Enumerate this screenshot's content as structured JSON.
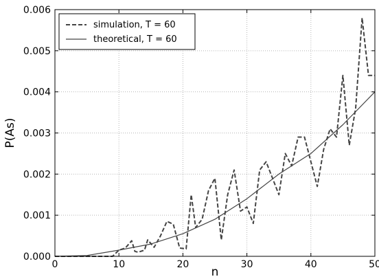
{
  "chart_data": {
    "type": "line",
    "title": "",
    "xlabel": "n",
    "ylabel": "P(As)",
    "xlim": [
      0,
      50
    ],
    "ylim": [
      0,
      0.006
    ],
    "xticks": [
      "0",
      "10",
      "20",
      "30",
      "40",
      "50"
    ],
    "xtick_values": [
      0,
      10,
      20,
      30,
      40,
      50
    ],
    "yticks": [
      "0.000",
      "0.001",
      "0.002",
      "0.003",
      "0.004",
      "0.005",
      "0.006"
    ],
    "ytick_values": [
      0,
      0.001,
      0.002,
      0.003,
      0.004,
      0.005,
      0.006
    ],
    "grid": true,
    "legend_position": "top-left",
    "series": [
      {
        "name": "simulation, T = 60",
        "style": "dashed",
        "color": "#444444",
        "points": [
          [
            0,
            0
          ],
          [
            5,
            0
          ],
          [
            9,
            0
          ],
          [
            10,
            0.00015
          ],
          [
            11,
            0.0002
          ],
          [
            12,
            0.00038
          ],
          [
            12.5,
            0.00012
          ],
          [
            13,
            0.0001
          ],
          [
            14,
            0.00015
          ],
          [
            14.5,
            0.0004
          ],
          [
            15.5,
            0.00022
          ],
          [
            16.5,
            0.0005
          ],
          [
            17.5,
            0.00085
          ],
          [
            18.5,
            0.00078
          ],
          [
            19.5,
            0.0002
          ],
          [
            20.5,
            0.00018
          ],
          [
            21.3,
            0.0015
          ],
          [
            22,
            0.0007
          ],
          [
            23,
            0.0009
          ],
          [
            24,
            0.0016
          ],
          [
            25,
            0.0019
          ],
          [
            26,
            0.0004
          ],
          [
            27,
            0.0015
          ],
          [
            28,
            0.0021
          ],
          [
            29,
            0.0011
          ],
          [
            30,
            0.0012
          ],
          [
            31,
            0.0008
          ],
          [
            32,
            0.0021
          ],
          [
            33,
            0.0023
          ],
          [
            34,
            0.0019
          ],
          [
            35,
            0.0015
          ],
          [
            36,
            0.0025
          ],
          [
            37,
            0.0022
          ],
          [
            38,
            0.0029
          ],
          [
            39,
            0.0029
          ],
          [
            40,
            0.0023
          ],
          [
            41,
            0.0017
          ],
          [
            42,
            0.0026
          ],
          [
            43,
            0.0031
          ],
          [
            44,
            0.0029
          ],
          [
            45,
            0.0044
          ],
          [
            46,
            0.0027
          ],
          [
            47,
            0.0036
          ],
          [
            48,
            0.0058
          ],
          [
            49,
            0.0044
          ],
          [
            50,
            0.0044
          ]
        ]
      },
      {
        "name": "theoretical, T = 60",
        "style": "solid",
        "color": "#444444",
        "points": [
          [
            0,
            0
          ],
          [
            5,
            2e-05
          ],
          [
            10,
            0.00015
          ],
          [
            15,
            0.0003
          ],
          [
            20,
            0.00055
          ],
          [
            25,
            0.0009
          ],
          [
            30,
            0.0014
          ],
          [
            35,
            0.002
          ],
          [
            40,
            0.0025
          ],
          [
            45,
            0.0032
          ],
          [
            50,
            0.004
          ]
        ]
      }
    ]
  }
}
